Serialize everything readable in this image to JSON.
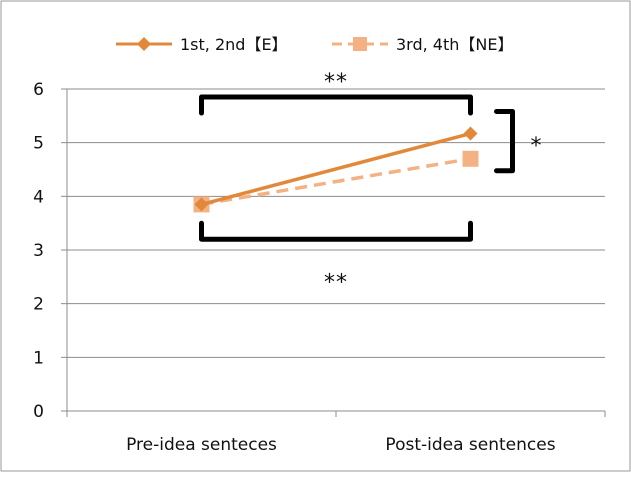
{
  "chart_data": {
    "type": "line",
    "categories": [
      "Pre-idea senteces",
      "Post-idea sentences"
    ],
    "ylim": [
      0,
      6
    ],
    "yticks": [
      "0",
      "1",
      "2",
      "3",
      "4",
      "5",
      "6"
    ],
    "grid": true,
    "legend_placement": "top",
    "series": [
      {
        "name": "1st, 2nd【E】",
        "values": [
          3.85,
          5.17
        ],
        "marker": "diamond",
        "style": "solid",
        "color": "#E2883A"
      },
      {
        "name": "3rd, 4th【NE】",
        "values": [
          3.85,
          4.7
        ],
        "marker": "square",
        "style": "dashed",
        "color": "#F4B183"
      }
    ],
    "annotations": {
      "top_bracket": "**",
      "bottom_bracket": "**",
      "side_bracket": "*"
    }
  }
}
